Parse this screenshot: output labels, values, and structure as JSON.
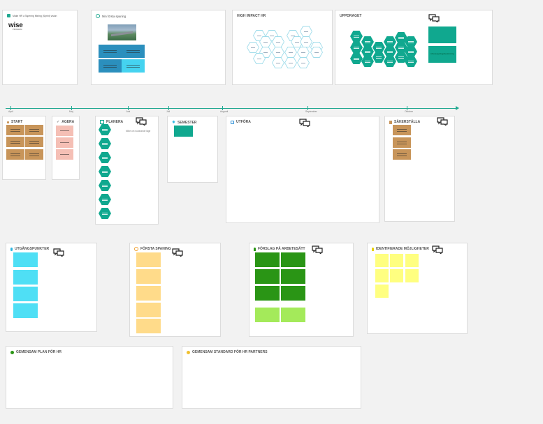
{
  "frames": {
    "intro": {
      "title": "Make HR a Tapering Mining (Sprint) vision",
      "logo_word": "wise",
      "logo_sub": "PROGRAM"
    },
    "spaning": {
      "title": "Min första spaning"
    },
    "high_impact": {
      "title": "HIGH IMPACT HR"
    },
    "uppdraget": {
      "title": "UPPDRAGET",
      "note_text": "Arbetsuppdragsbeskrivning"
    },
    "start": {
      "title": "START"
    },
    "agera": {
      "title": "AGERA"
    },
    "planera": {
      "title": "PLANERA",
      "note_text": "Möte om nuvarande läge"
    },
    "semester": {
      "title": "SEMESTER"
    },
    "utfora": {
      "title": "UTFÖRA"
    },
    "sakerstalla": {
      "title": "SÄKERSTÄLLA"
    },
    "utgangspunkter": {
      "title": "UTGÅNGSPUNKTER"
    },
    "forsta_spaning": {
      "title": "FÖRSTA SPANING"
    },
    "forslag": {
      "title": "FÖRSLAG PÅ ARBETESÄTT"
    },
    "identifierade": {
      "title": "IDENTIFIERADE MÖJLIGHETER"
    },
    "gemensam_plan": {
      "title": "GEMENSAM PLAN FÖR HR"
    },
    "gemensam_standard": {
      "title": "GEMENSAM STANDARD FÖR HR PARTNERS"
    }
  },
  "timeline": {
    "labels": [
      "April",
      "Maj",
      "Juni",
      "Juli",
      "Augusti",
      "September",
      "Oktober"
    ]
  },
  "colors": {
    "teal": "#10a88f",
    "blue_dark": "#2b8fbd",
    "blue_light": "#45d3f0",
    "tan": "#c8955a",
    "pink": "#f5bfb5",
    "cyan": "#4fdff5",
    "yellow_orange": "#ffdb8a",
    "green_dark": "#2a9515",
    "green_light": "#a4ea5a",
    "yellow": "#ffff80"
  },
  "icons": {
    "comment": "comment-bubbles-icon",
    "sun": "sun-icon",
    "calendar": "calendar-icon",
    "search": "search-icon"
  }
}
